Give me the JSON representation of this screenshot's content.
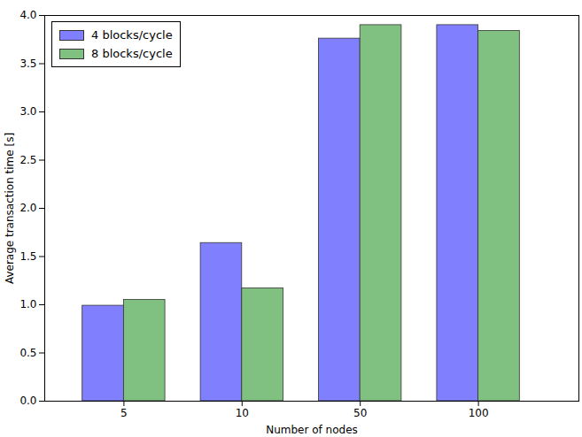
{
  "chart_data": {
    "type": "bar",
    "x_label": "Number of nodes",
    "y_label": "Average transaction time [s]",
    "categories": [
      "5",
      "10",
      "50",
      "100"
    ],
    "series": [
      {
        "name": "4 blocks/cycle",
        "color": "#8080ff",
        "values": [
          0.99,
          1.64,
          3.76,
          3.9
        ]
      },
      {
        "name": "8 blocks/cycle",
        "color": "#80c080",
        "values": [
          1.05,
          1.17,
          3.9,
          3.84
        ]
      }
    ],
    "ylim": [
      0,
      4.0
    ],
    "yticks": [
      {
        "value": 0,
        "label": "0.0"
      },
      {
        "value": 0.5,
        "label": "0.5"
      },
      {
        "value": 1.0,
        "label": "1.0"
      },
      {
        "value": 1.5,
        "label": "1.5"
      },
      {
        "value": 2.0,
        "label": "2.0"
      },
      {
        "value": 2.5,
        "label": "2.5"
      },
      {
        "value": 3.0,
        "label": "3.0"
      },
      {
        "value": 3.5,
        "label": "3.5"
      },
      {
        "value": 4.0,
        "label": "4.0"
      }
    ],
    "grid": false,
    "legend": "upper left"
  }
}
